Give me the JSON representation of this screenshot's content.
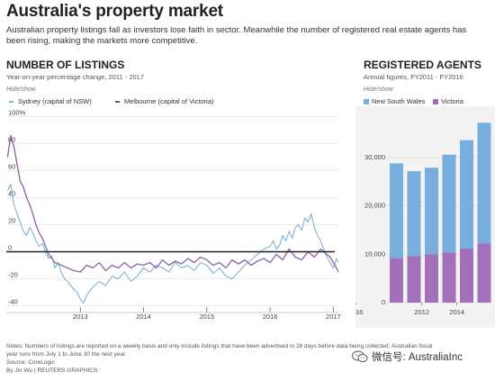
{
  "header": {
    "title": "Australia's property market",
    "subtitle": "Australian property listings fall as investors lose faith in sector. Meanwhile the number of registered real estate agents has been rising, making the markets more competitive."
  },
  "listings": {
    "title": "NUMBER OF LISTINGS",
    "subtitle": "Year-on-year percentage change, 2011 - 2017",
    "hide_show": "Hide/show",
    "legend": [
      "Sydney (capital of NSW)",
      "Melbourne (capital of Victoria)"
    ]
  },
  "agents": {
    "title": "REGISTERED AGENTS",
    "subtitle": "Annual figures, FY2011 - FY2016",
    "hide_show": "Hide/show",
    "legend": [
      "New South Wales",
      "Victoria"
    ]
  },
  "colors": {
    "sydney": "#7fb2d6",
    "melbourne": "#8e6aaa",
    "nsw": "#77aede",
    "vic": "#a36fb8",
    "zero_line": "#222222"
  },
  "footer": {
    "notes": [
      "Notes: Numbers of listings are reported on a weekly basis and only include listings that have been advertised in 28 days before data being collected; Australian fiscal",
      "year runs from July 1 to June 30 the next year."
    ],
    "source": "Source: CoreLogic",
    "byline": "By Jin Wu | REUTERS GRAPHICS"
  },
  "watermark": {
    "icon": "wechat-icon",
    "text": "微信号: AustraliaInc"
  },
  "chart_data": [
    {
      "type": "line",
      "title": "NUMBER OF LISTINGS",
      "subtitle": "Year-on-year percentage change, 2011 - 2017",
      "xlim": [
        2011.83,
        2017.08
      ],
      "ylim": [
        -45,
        105
      ],
      "x_ticks": [
        "2013",
        "2014",
        "2015",
        "2016",
        "2017"
      ],
      "y_ticks": [
        "100%",
        "80",
        "60",
        "40",
        "20",
        "0",
        "-20",
        "-40"
      ],
      "y_tick_values": [
        100,
        80,
        60,
        40,
        20,
        0,
        -20,
        -40
      ],
      "series": [
        {
          "name": "Sydney (capital of NSW)",
          "x": [
            2011.85,
            2011.9,
            2011.95,
            2012.0,
            2012.05,
            2012.1,
            2012.15,
            2012.2,
            2012.25,
            2012.3,
            2012.35,
            2012.4,
            2012.45,
            2012.5,
            2012.55,
            2012.6,
            2012.65,
            2012.7,
            2012.75,
            2012.8,
            2012.85,
            2012.9,
            2012.95,
            2013.0,
            2013.05,
            2013.1,
            2013.2,
            2013.3,
            2013.4,
            2013.5,
            2013.6,
            2013.7,
            2013.8,
            2013.9,
            2014.0,
            2014.1,
            2014.2,
            2014.3,
            2014.4,
            2014.5,
            2014.6,
            2014.7,
            2014.8,
            2014.9,
            2015.0,
            2015.1,
            2015.2,
            2015.3,
            2015.4,
            2015.5,
            2015.6,
            2015.7,
            2015.8,
            2015.9,
            2016.0,
            2016.05,
            2016.1,
            2016.15,
            2016.2,
            2016.25,
            2016.3,
            2016.35,
            2016.4,
            2016.45,
            2016.5,
            2016.55,
            2016.6,
            2016.65,
            2016.7,
            2016.75,
            2016.8,
            2016.85,
            2016.9,
            2016.95,
            2017.0,
            2017.05,
            2017.08
          ],
          "values": [
            45,
            50,
            35,
            28,
            22,
            15,
            12,
            18,
            14,
            8,
            4,
            6,
            0,
            -5,
            -3,
            -12,
            -8,
            -15,
            -20,
            -22,
            -25,
            -28,
            -30,
            -35,
            -38,
            -32,
            -26,
            -22,
            -25,
            -18,
            -20,
            -15,
            -22,
            -18,
            -12,
            -15,
            -10,
            -12,
            -15,
            -8,
            -12,
            -10,
            -14,
            -8,
            -10,
            -16,
            -12,
            -18,
            -20,
            -15,
            -10,
            -6,
            -2,
            2,
            4,
            8,
            2,
            5,
            12,
            8,
            15,
            10,
            18,
            20,
            16,
            25,
            22,
            28,
            18,
            12,
            8,
            2,
            -4,
            -8,
            -12,
            -5,
            -8
          ]
        },
        {
          "name": "Melbourne (capital of Victoria)",
          "x": [
            2011.85,
            2011.9,
            2011.95,
            2012.0,
            2012.05,
            2012.1,
            2012.15,
            2012.2,
            2012.25,
            2012.3,
            2012.35,
            2012.4,
            2012.45,
            2012.5,
            2012.55,
            2012.6,
            2012.7,
            2012.8,
            2012.9,
            2013.0,
            2013.1,
            2013.2,
            2013.3,
            2013.4,
            2013.5,
            2013.6,
            2013.7,
            2013.8,
            2013.9,
            2014.0,
            2014.1,
            2014.2,
            2014.3,
            2014.4,
            2014.5,
            2014.6,
            2014.7,
            2014.8,
            2014.9,
            2015.0,
            2015.1,
            2015.2,
            2015.3,
            2015.4,
            2015.5,
            2015.6,
            2015.7,
            2015.8,
            2015.9,
            2016.0,
            2016.1,
            2016.2,
            2016.3,
            2016.4,
            2016.5,
            2016.6,
            2016.7,
            2016.8,
            2016.9,
            2016.95,
            2017.0,
            2017.05,
            2017.08
          ],
          "values": [
            70,
            86,
            78,
            65,
            52,
            48,
            40,
            35,
            28,
            20,
            14,
            10,
            4,
            -2,
            -5,
            -8,
            -10,
            -12,
            -14,
            -15,
            -10,
            -12,
            -8,
            -14,
            -10,
            -12,
            -8,
            -12,
            -9,
            -10,
            -8,
            -12,
            -6,
            -10,
            -7,
            -9,
            -5,
            -8,
            -4,
            -6,
            -10,
            -8,
            -12,
            -6,
            -9,
            -6,
            -10,
            -7,
            -5,
            -8,
            -2,
            -6,
            2,
            -4,
            -6,
            0,
            -4,
            2,
            -2,
            -4,
            -8,
            -12,
            -15
          ]
        }
      ]
    },
    {
      "type": "bar",
      "stacked": true,
      "title": "REGISTERED AGENTS",
      "subtitle": "Annual figures, FY2011 - FY2016",
      "categories": [
        2011,
        2012,
        2013,
        2014,
        2015,
        2016
      ],
      "x_tick_labels": [
        "2012",
        "2014",
        "2016"
      ],
      "ylim": [
        0,
        38000
      ],
      "y_ticks": [
        "30,000",
        "20,000",
        "10,000",
        "0"
      ],
      "y_tick_values": [
        30000,
        20000,
        10000,
        0
      ],
      "series": [
        {
          "name": "Victoria",
          "values": [
            9200,
            9600,
            10000,
            10400,
            11200,
            12200
          ]
        },
        {
          "name": "New South Wales",
          "values": [
            19600,
            17600,
            17900,
            20200,
            22400,
            25000
          ]
        }
      ]
    }
  ]
}
